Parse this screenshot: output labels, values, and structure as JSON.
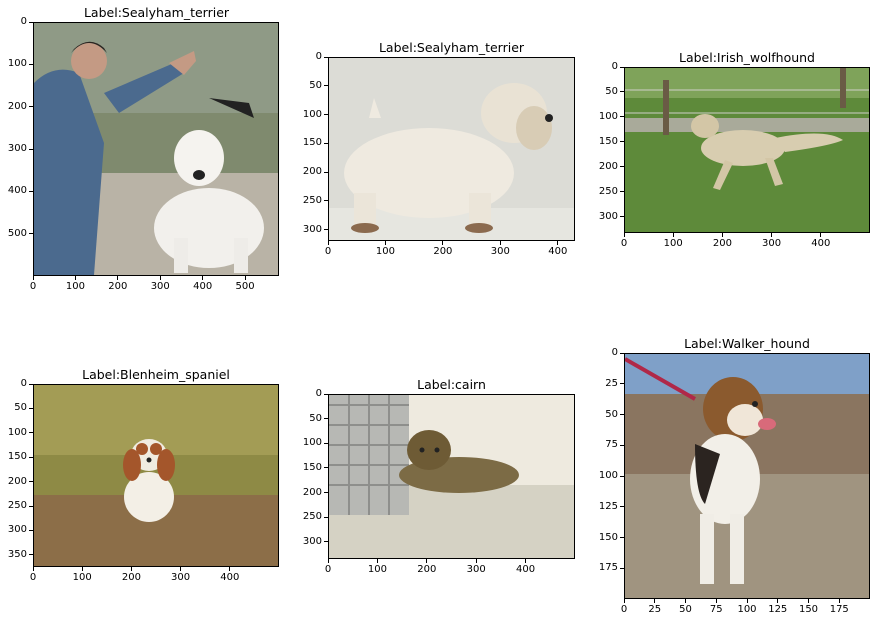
{
  "figure": {
    "panels": [
      {
        "id": "p1",
        "title": "Label:Sealyham_terrier",
        "xticks": [
          "0",
          "100",
          "200",
          "300",
          "400",
          "500"
        ],
        "xmax": 580,
        "yticks": [
          "0",
          "100",
          "200",
          "300",
          "400",
          "500"
        ],
        "ymax": 600,
        "subject": "dog-photo"
      },
      {
        "id": "p2",
        "title": "Label:Sealyham_terrier",
        "xticks": [
          "0",
          "100",
          "200",
          "300",
          "400"
        ],
        "xmax": 430,
        "yticks": [
          "0",
          "50",
          "100",
          "150",
          "200",
          "250",
          "300"
        ],
        "ymax": 320,
        "subject": "dog-photo"
      },
      {
        "id": "p3",
        "title": "Label:Irish_wolfhound",
        "xticks": [
          "0",
          "100",
          "200",
          "300",
          "400"
        ],
        "xmax": 500,
        "yticks": [
          "0",
          "50",
          "100",
          "150",
          "200",
          "250",
          "300"
        ],
        "ymax": 333,
        "subject": "dog-photo"
      },
      {
        "id": "p4",
        "title": "Label:Blenheim_spaniel",
        "xticks": [
          "0",
          "100",
          "200",
          "300",
          "400"
        ],
        "xmax": 500,
        "yticks": [
          "0",
          "50",
          "100",
          "150",
          "200",
          "250",
          "300",
          "350"
        ],
        "ymax": 375,
        "subject": "dog-photo"
      },
      {
        "id": "p5",
        "title": "Label:cairn",
        "xticks": [
          "0",
          "100",
          "200",
          "300",
          "400"
        ],
        "xmax": 500,
        "yticks": [
          "0",
          "50",
          "100",
          "150",
          "200",
          "250",
          "300"
        ],
        "ymax": 335,
        "subject": "dog-photo"
      },
      {
        "id": "p6",
        "title": "Label:Walker_hound",
        "xticks": [
          "0",
          "25",
          "50",
          "75",
          "100",
          "125",
          "150",
          "175"
        ],
        "xmax": 200,
        "yticks": [
          "0",
          "25",
          "50",
          "75",
          "100",
          "125",
          "150",
          "175"
        ],
        "ymax": 200,
        "subject": "dog-photo"
      }
    ]
  }
}
